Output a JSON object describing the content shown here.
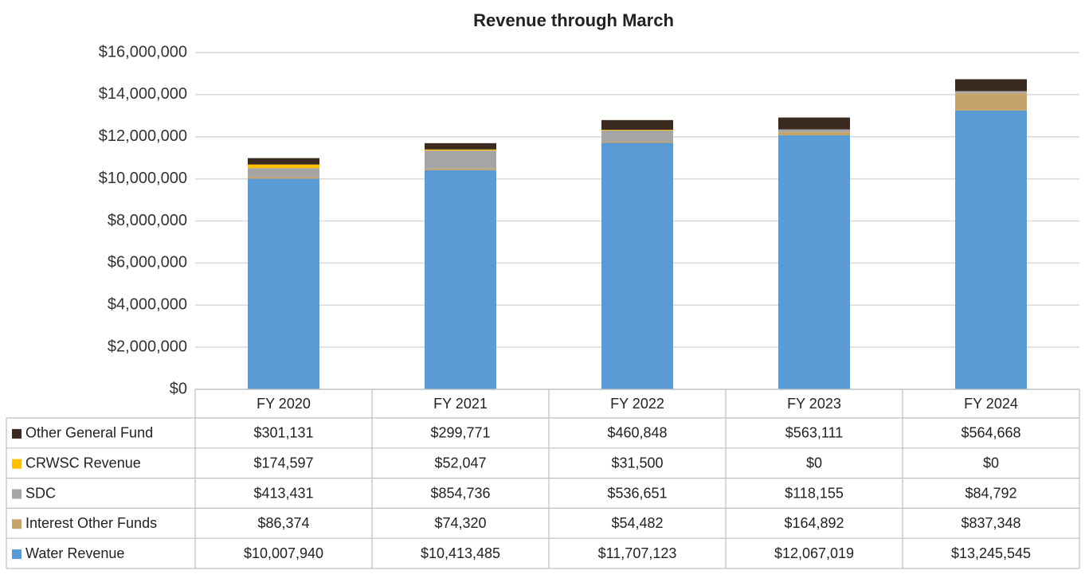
{
  "chart_data": {
    "type": "stacked-bar",
    "title": "Revenue through March",
    "categories": [
      "FY 2020",
      "FY 2021",
      "FY 2022",
      "FY 2023",
      "FY 2024"
    ],
    "series": [
      {
        "name": "Other General Fund",
        "color": "#3b2a20",
        "values": [
          301131,
          299771,
          460848,
          563111,
          564668
        ],
        "value_labels": [
          "$301,131",
          "$299,771",
          "$460,848",
          "$563,111",
          "$564,668"
        ]
      },
      {
        "name": "CRWSC Revenue",
        "color": "#ffc000",
        "values": [
          174597,
          52047,
          31500,
          0,
          0
        ],
        "value_labels": [
          "$174,597",
          "$52,047",
          "$31,500",
          "$0",
          "$0"
        ]
      },
      {
        "name": "SDC",
        "color": "#a5a5a5",
        "values": [
          413431,
          854736,
          536651,
          118155,
          84792
        ],
        "value_labels": [
          "$413,431",
          "$854,736",
          "$536,651",
          "$118,155",
          "$84,792"
        ]
      },
      {
        "name": "Interest Other Funds",
        "color": "#c4a46a",
        "values": [
          86374,
          74320,
          54482,
          164892,
          837348
        ],
        "value_labels": [
          "$86,374",
          "$74,320",
          "$54,482",
          "$164,892",
          "$837,348"
        ]
      },
      {
        "name": "Water Revenue",
        "color": "#5b9bd5",
        "values": [
          10007940,
          10413485,
          11707123,
          12067019,
          13245545
        ],
        "value_labels": [
          "$10,007,940",
          "$10,413,485",
          "$11,707,123",
          "$12,067,019",
          "$13,245,545"
        ]
      }
    ],
    "ylim": [
      0,
      16000000
    ],
    "yticks": [
      {
        "value": 0,
        "label": "$0"
      },
      {
        "value": 2000000,
        "label": "$2,000,000"
      },
      {
        "value": 4000000,
        "label": "$4,000,000"
      },
      {
        "value": 6000000,
        "label": "$6,000,000"
      },
      {
        "value": 8000000,
        "label": "$8,000,000"
      },
      {
        "value": 10000000,
        "label": "$10,000,000"
      },
      {
        "value": 12000000,
        "label": "$12,000,000"
      },
      {
        "value": 14000000,
        "label": "$14,000,000"
      },
      {
        "value": 16000000,
        "label": "$16,000,000"
      }
    ],
    "grid": true
  }
}
